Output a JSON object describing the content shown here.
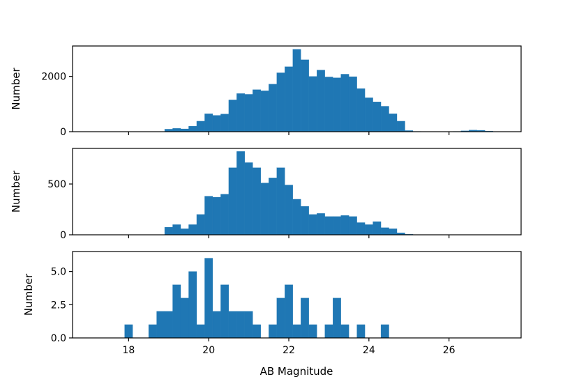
{
  "chart_data": {
    "type": "bar",
    "layout": "three vertically stacked histograms sharing the x axis",
    "xlabel": "AB Magnitude",
    "xlim": [
      16.6,
      27.8
    ],
    "xticks": [
      "18",
      "20",
      "22",
      "24",
      "26"
    ],
    "bar_color": "#1f77b4",
    "bin_start": 18.9,
    "bin_width": 0.2,
    "panels": [
      {
        "ylabel": "Number",
        "ylim": [
          0,
          3100
        ],
        "yticks": [
          0,
          2000
        ],
        "bins": [
          {
            "x": 18.9,
            "y": 90
          },
          {
            "x": 19.1,
            "y": 120
          },
          {
            "x": 19.3,
            "y": 100
          },
          {
            "x": 19.5,
            "y": 200
          },
          {
            "x": 19.7,
            "y": 380
          },
          {
            "x": 19.9,
            "y": 650
          },
          {
            "x": 20.1,
            "y": 590
          },
          {
            "x": 20.3,
            "y": 640
          },
          {
            "x": 20.5,
            "y": 1150
          },
          {
            "x": 20.7,
            "y": 1380
          },
          {
            "x": 20.9,
            "y": 1350
          },
          {
            "x": 21.1,
            "y": 1520
          },
          {
            "x": 21.3,
            "y": 1480
          },
          {
            "x": 21.5,
            "y": 1720
          },
          {
            "x": 21.7,
            "y": 2130
          },
          {
            "x": 21.9,
            "y": 2350
          },
          {
            "x": 22.1,
            "y": 2980
          },
          {
            "x": 22.3,
            "y": 2600
          },
          {
            "x": 22.5,
            "y": 2000
          },
          {
            "x": 22.7,
            "y": 2230
          },
          {
            "x": 22.9,
            "y": 1980
          },
          {
            "x": 23.1,
            "y": 1950
          },
          {
            "x": 23.3,
            "y": 2080
          },
          {
            "x": 23.5,
            "y": 1990
          },
          {
            "x": 23.7,
            "y": 1560
          },
          {
            "x": 23.9,
            "y": 1230
          },
          {
            "x": 24.1,
            "y": 1080
          },
          {
            "x": 24.3,
            "y": 920
          },
          {
            "x": 24.5,
            "y": 650
          },
          {
            "x": 24.7,
            "y": 380
          },
          {
            "x": 24.9,
            "y": 40
          },
          {
            "x": 25.1,
            "y": 10
          },
          {
            "x": 25.3,
            "y": 5
          },
          {
            "x": 25.5,
            "y": 5
          },
          {
            "x": 25.7,
            "y": 5
          },
          {
            "x": 25.9,
            "y": 5
          },
          {
            "x": 26.1,
            "y": 10
          },
          {
            "x": 26.3,
            "y": 30
          },
          {
            "x": 26.5,
            "y": 60
          },
          {
            "x": 26.7,
            "y": 50
          },
          {
            "x": 26.9,
            "y": 20
          },
          {
            "x": 27.1,
            "y": 5
          }
        ]
      },
      {
        "ylabel": "Number",
        "ylim": [
          0,
          850
        ],
        "yticks": [
          0,
          500
        ],
        "bins": [
          {
            "x": 18.9,
            "y": 75
          },
          {
            "x": 19.1,
            "y": 100
          },
          {
            "x": 19.3,
            "y": 60
          },
          {
            "x": 19.5,
            "y": 100
          },
          {
            "x": 19.7,
            "y": 200
          },
          {
            "x": 19.9,
            "y": 380
          },
          {
            "x": 20.1,
            "y": 370
          },
          {
            "x": 20.3,
            "y": 400
          },
          {
            "x": 20.5,
            "y": 660
          },
          {
            "x": 20.7,
            "y": 820
          },
          {
            "x": 20.9,
            "y": 710
          },
          {
            "x": 21.1,
            "y": 660
          },
          {
            "x": 21.3,
            "y": 510
          },
          {
            "x": 21.5,
            "y": 560
          },
          {
            "x": 21.7,
            "y": 660
          },
          {
            "x": 21.9,
            "y": 490
          },
          {
            "x": 22.1,
            "y": 350
          },
          {
            "x": 22.3,
            "y": 280
          },
          {
            "x": 22.5,
            "y": 200
          },
          {
            "x": 22.7,
            "y": 210
          },
          {
            "x": 22.9,
            "y": 180
          },
          {
            "x": 23.1,
            "y": 180
          },
          {
            "x": 23.3,
            "y": 190
          },
          {
            "x": 23.5,
            "y": 180
          },
          {
            "x": 23.7,
            "y": 120
          },
          {
            "x": 23.9,
            "y": 100
          },
          {
            "x": 24.1,
            "y": 130
          },
          {
            "x": 24.3,
            "y": 70
          },
          {
            "x": 24.5,
            "y": 60
          },
          {
            "x": 24.7,
            "y": 20
          },
          {
            "x": 24.9,
            "y": 5
          }
        ]
      },
      {
        "ylabel": "Number",
        "ylim": [
          0,
          6.5
        ],
        "yticks": [
          "0.0",
          "2.5",
          "5.0"
        ],
        "bins": [
          {
            "x": 17.9,
            "y": 1
          },
          {
            "x": 18.5,
            "y": 1
          },
          {
            "x": 18.7,
            "y": 2
          },
          {
            "x": 18.9,
            "y": 2
          },
          {
            "x": 19.1,
            "y": 4
          },
          {
            "x": 19.3,
            "y": 3
          },
          {
            "x": 19.5,
            "y": 5
          },
          {
            "x": 19.7,
            "y": 1
          },
          {
            "x": 19.9,
            "y": 6
          },
          {
            "x": 20.1,
            "y": 2
          },
          {
            "x": 20.3,
            "y": 4
          },
          {
            "x": 20.5,
            "y": 2
          },
          {
            "x": 20.7,
            "y": 2
          },
          {
            "x": 20.9,
            "y": 2
          },
          {
            "x": 21.1,
            "y": 1
          },
          {
            "x": 21.5,
            "y": 1
          },
          {
            "x": 21.7,
            "y": 3
          },
          {
            "x": 21.9,
            "y": 4
          },
          {
            "x": 22.1,
            "y": 1
          },
          {
            "x": 22.3,
            "y": 3
          },
          {
            "x": 22.5,
            "y": 1
          },
          {
            "x": 22.9,
            "y": 1
          },
          {
            "x": 23.1,
            "y": 3
          },
          {
            "x": 23.3,
            "y": 1
          },
          {
            "x": 23.7,
            "y": 1
          },
          {
            "x": 24.3,
            "y": 1
          }
        ]
      }
    ]
  }
}
